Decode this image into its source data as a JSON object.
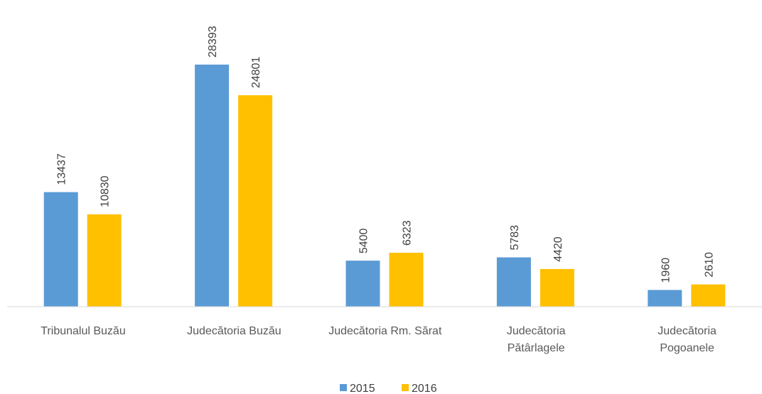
{
  "chart_data": {
    "type": "bar",
    "categories": [
      "Tribunalul Buzău",
      "Judecătoria Buzău",
      "Judecătoria Rm. Sărat",
      "Judecătoria\nPătârlagele",
      "Judecătoria\nPogoanele"
    ],
    "series": [
      {
        "name": "2015",
        "color": "#5b9bd5",
        "values": [
          13437,
          28393,
          5400,
          5783,
          1960
        ]
      },
      {
        "name": "2016",
        "color": "#ffc000",
        "values": [
          10830,
          24801,
          6323,
          4420,
          2610
        ]
      }
    ],
    "legend": "bottom"
  }
}
